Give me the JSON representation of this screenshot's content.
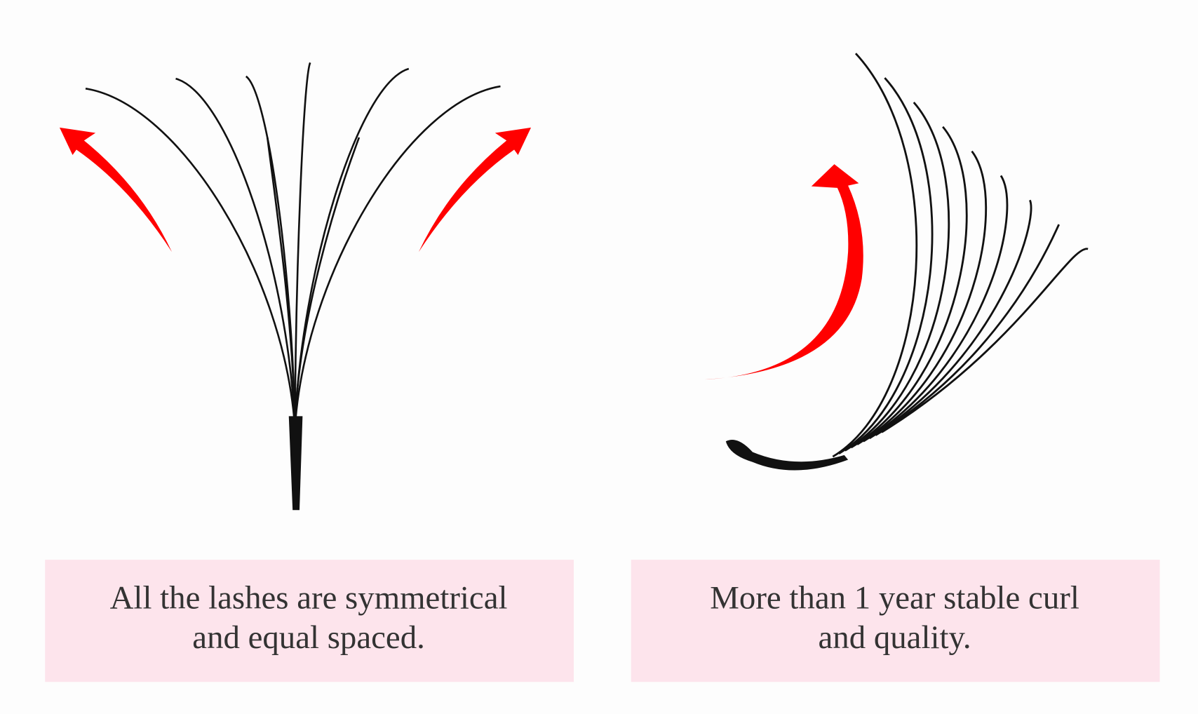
{
  "panels": [
    {
      "caption": [
        "All the lashes are symmetrical",
        "and equal spaced."
      ]
    },
    {
      "caption": [
        "More than 1 year stable curl",
        "and quality."
      ]
    }
  ]
}
